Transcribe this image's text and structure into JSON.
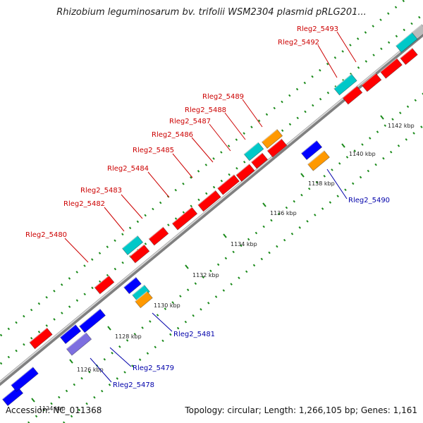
{
  "header": {
    "title": "Rhizobium leguminosarum bv. trifolii WSM2304 plasmid pRLG201..."
  },
  "footer": {
    "accession": "Accession: NC_011368",
    "summary": "Topology: circular; Length: 1,266,105 bp; Genes: 1,161"
  },
  "colors": {
    "forward_cds": "#ff0000",
    "reverse_cds": "#0000ff",
    "teal_feature": "#00c8c8",
    "orange_feature": "#ff9900",
    "purple_feature": "#7d6fe0",
    "backbone": "#9a9a9a",
    "label_forward": "#cc0000",
    "label_reverse": "#0000aa",
    "tick_green": "#1a8a1a"
  },
  "ticks": [
    "1124 kbp",
    "1126 kbp",
    "1128 kbp",
    "1130 kbp",
    "1132 kbp",
    "1134 kbp",
    "1136 kbp",
    "1138 kbp",
    "1140 kbp",
    "1142 kbp"
  ],
  "forward_labels": [
    "Rleg2_5480",
    "Rleg2_5482",
    "Rleg2_5483",
    "Rleg2_5484",
    "Rleg2_5485",
    "Rleg2_5486",
    "Rleg2_5487",
    "Rleg2_5488",
    "Rleg2_5489",
    "Rleg2_5492",
    "Rleg2_5493"
  ],
  "reverse_labels": [
    "Rleg2_5478",
    "Rleg2_5479",
    "Rleg2_5481",
    "Rleg2_5490"
  ]
}
